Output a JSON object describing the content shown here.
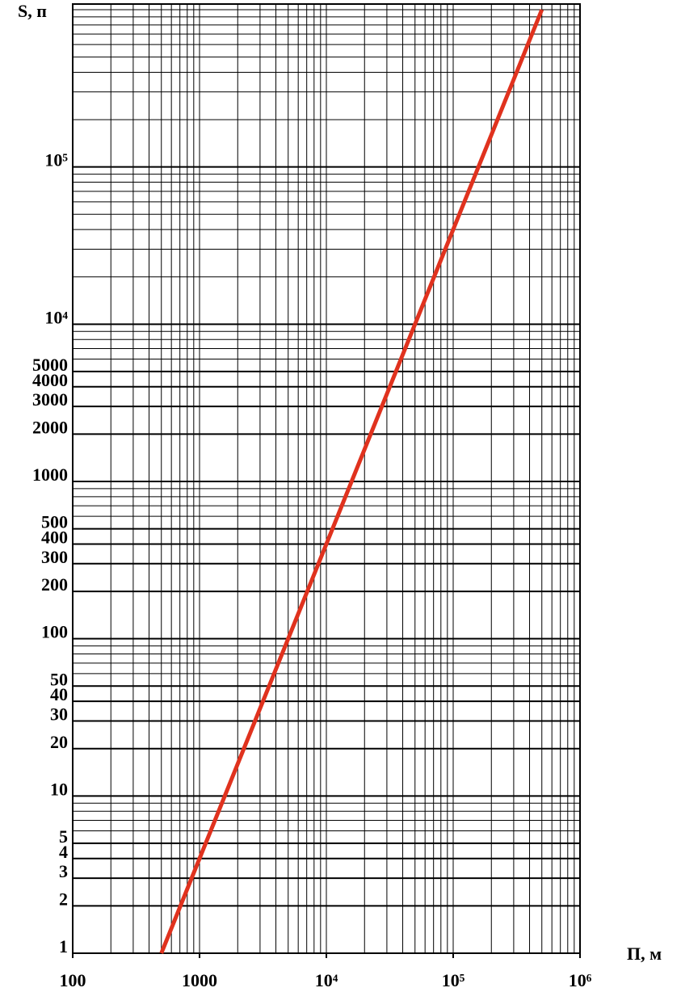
{
  "chart_data": {
    "type": "line",
    "y_label": "S, п",
    "x_label": "П,  м",
    "log_x": true,
    "log_y": true,
    "xlim": [
      100,
      1000000
    ],
    "ylim": [
      1,
      1000000
    ],
    "xticks": [
      100,
      1000,
      {
        "value": 10000,
        "label": "10⁴"
      },
      {
        "value": 100000,
        "label": "10⁵"
      },
      {
        "value": 1000000,
        "label": "10⁶"
      }
    ],
    "yticks": [
      1,
      2,
      3,
      4,
      5,
      10,
      20,
      30,
      40,
      50,
      100,
      200,
      300,
      400,
      500,
      1000,
      2000,
      3000,
      4000,
      5000,
      {
        "value": 10000,
        "label": "10⁴"
      },
      {
        "value": 100000,
        "label": "10⁵"
      }
    ],
    "xgrid": [
      100,
      200,
      300,
      400,
      500,
      600,
      700,
      800,
      900,
      1000,
      2000,
      3000,
      4000,
      5000,
      6000,
      7000,
      8000,
      9000,
      10000,
      20000,
      30000,
      40000,
      50000,
      60000,
      70000,
      80000,
      90000,
      100000,
      200000,
      300000,
      400000,
      500000,
      600000,
      700000,
      800000,
      900000,
      1000000
    ],
    "ygrid": [
      1,
      2,
      3,
      4,
      5,
      6,
      7,
      8,
      9,
      10,
      20,
      30,
      40,
      50,
      60,
      70,
      80,
      90,
      100,
      200,
      300,
      400,
      500,
      600,
      700,
      800,
      900,
      1000,
      2000,
      3000,
      4000,
      5000,
      6000,
      7000,
      8000,
      9000,
      10000,
      20000,
      30000,
      40000,
      50000,
      60000,
      70000,
      80000,
      90000,
      100000,
      200000,
      300000,
      400000,
      500000,
      600000,
      700000,
      800000,
      900000,
      1000000
    ],
    "grid": true,
    "series": [
      {
        "color": "#e0321e",
        "x": [
          500,
          500000
        ],
        "values": [
          1,
          1000000
        ]
      }
    ]
  }
}
